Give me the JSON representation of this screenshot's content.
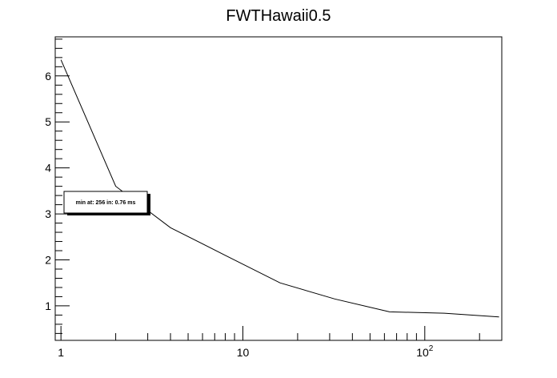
{
  "chart_data": {
    "type": "line",
    "title": "FWTHawaii0.5",
    "xlabel": "",
    "ylabel": "",
    "x_scale": "log",
    "xlim": [
      0.93,
      265
    ],
    "ylim": [
      0.25,
      6.85
    ],
    "x_tick_labels": [
      {
        "value": 1,
        "base": "1",
        "exp": ""
      },
      {
        "value": 10,
        "base": "10",
        "exp": ""
      },
      {
        "value": 100,
        "base": "10",
        "exp": "2"
      }
    ],
    "y_tick_labels": [
      "1",
      "2",
      "3",
      "4",
      "5",
      "6"
    ],
    "grid": false,
    "legend": "none",
    "series": [
      {
        "x": [
          1,
          2,
          4,
          8,
          16,
          32,
          64,
          128,
          256
        ],
        "values": [
          6.35,
          3.6,
          2.7,
          2.1,
          1.5,
          1.15,
          0.87,
          0.84,
          0.76
        ]
      }
    ],
    "annotation": {
      "text": "min at: 256 in: 0.76 ms"
    },
    "colors": {
      "line": "#000000",
      "background": "#ffffff"
    }
  }
}
